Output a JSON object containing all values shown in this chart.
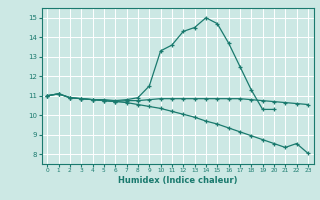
{
  "bg_color": "#cce8e4",
  "grid_color": "#ffffff",
  "line_color": "#1a7a6e",
  "xlabel": "Humidex (Indice chaleur)",
  "xlim": [
    -0.5,
    23.5
  ],
  "ylim": [
    7.5,
    15.5
  ],
  "yticks": [
    8,
    9,
    10,
    11,
    12,
    13,
    14,
    15
  ],
  "xticks": [
    0,
    1,
    2,
    3,
    4,
    5,
    6,
    7,
    8,
    9,
    10,
    11,
    12,
    13,
    14,
    15,
    16,
    17,
    18,
    19,
    20,
    21,
    22,
    23
  ],
  "line1_x": [
    0,
    1,
    2,
    3,
    4,
    5,
    6,
    7,
    8,
    9,
    10,
    11,
    12,
    13,
    14,
    15,
    16,
    17,
    18,
    19,
    20
  ],
  "line1_y": [
    11.0,
    11.1,
    10.9,
    10.85,
    10.8,
    10.8,
    10.75,
    10.8,
    10.9,
    11.5,
    13.3,
    13.6,
    14.3,
    14.5,
    15.0,
    14.7,
    13.7,
    12.5,
    11.3,
    10.3,
    10.3
  ],
  "line2_x": [
    0,
    1,
    2,
    3,
    4,
    5,
    6,
    7,
    8,
    9,
    10,
    11,
    12,
    13,
    14,
    15,
    16,
    17,
    18,
    19,
    20,
    21,
    22,
    23
  ],
  "line2_y": [
    11.0,
    11.1,
    10.9,
    10.85,
    10.8,
    10.75,
    10.7,
    10.75,
    10.75,
    10.8,
    10.85,
    10.85,
    10.85,
    10.85,
    10.85,
    10.85,
    10.85,
    10.85,
    10.8,
    10.75,
    10.7,
    10.65,
    10.6,
    10.55
  ],
  "line3_x": [
    0,
    1,
    2,
    3,
    4,
    5,
    6,
    7,
    8,
    9,
    10,
    11,
    12,
    13,
    14,
    15,
    16,
    17,
    18,
    19,
    20,
    21,
    22,
    23
  ],
  "line3_y": [
    11.0,
    11.1,
    10.9,
    10.85,
    10.8,
    10.75,
    10.7,
    10.65,
    10.55,
    10.45,
    10.35,
    10.2,
    10.05,
    9.9,
    9.7,
    9.55,
    9.35,
    9.15,
    8.95,
    8.75,
    8.55,
    8.35,
    8.55,
    8.05
  ]
}
